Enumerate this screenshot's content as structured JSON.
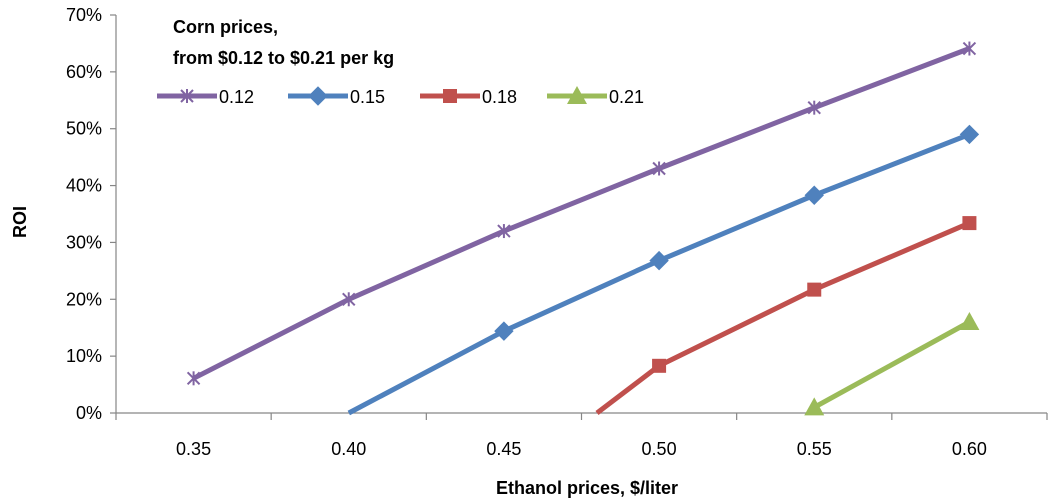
{
  "chart_data": {
    "type": "line",
    "title": "",
    "xlabel": "Ethanol prices, $/liter",
    "ylabel": "ROI",
    "x": [
      0.35,
      0.4,
      0.45,
      0.5,
      0.55,
      0.6
    ],
    "x_tick_labels": [
      "0.35",
      "0.40",
      "0.45",
      "0.50",
      "0.55",
      "0.60"
    ],
    "y_tick_labels": [
      "0%",
      "10%",
      "20%",
      "30%",
      "40%",
      "50%",
      "60%",
      "70%"
    ],
    "ylim": [
      0,
      0.7
    ],
    "grid": false,
    "legend": {
      "title_lines": [
        "Corn prices,",
        "from $0.12 to $0.21 per kg"
      ],
      "placement": "top-left"
    },
    "series": [
      {
        "name": "0.12",
        "color": "#8064A2",
        "marker": "x-star",
        "points": [
          [
            0.35,
            0.061
          ],
          [
            0.4,
            0.2
          ],
          [
            0.45,
            0.32
          ],
          [
            0.5,
            0.43
          ],
          [
            0.55,
            0.537
          ],
          [
            0.6,
            0.641
          ]
        ]
      },
      {
        "name": "0.15",
        "color": "#4F81BD",
        "marker": "diamond",
        "points": [
          [
            0.4,
            0.0
          ],
          [
            0.45,
            0.144
          ],
          [
            0.5,
            0.268
          ],
          [
            0.55,
            0.383
          ],
          [
            0.6,
            0.49
          ]
        ]
      },
      {
        "name": "0.18",
        "color": "#C0504D",
        "marker": "square",
        "points": [
          [
            0.48,
            0.0
          ],
          [
            0.5,
            0.083
          ],
          [
            0.55,
            0.217
          ],
          [
            0.6,
            0.334
          ]
        ]
      },
      {
        "name": "0.21",
        "color": "#9BBB59",
        "marker": "triangle",
        "points": [
          [
            0.55,
            0.01
          ],
          [
            0.6,
            0.16
          ]
        ]
      }
    ]
  }
}
